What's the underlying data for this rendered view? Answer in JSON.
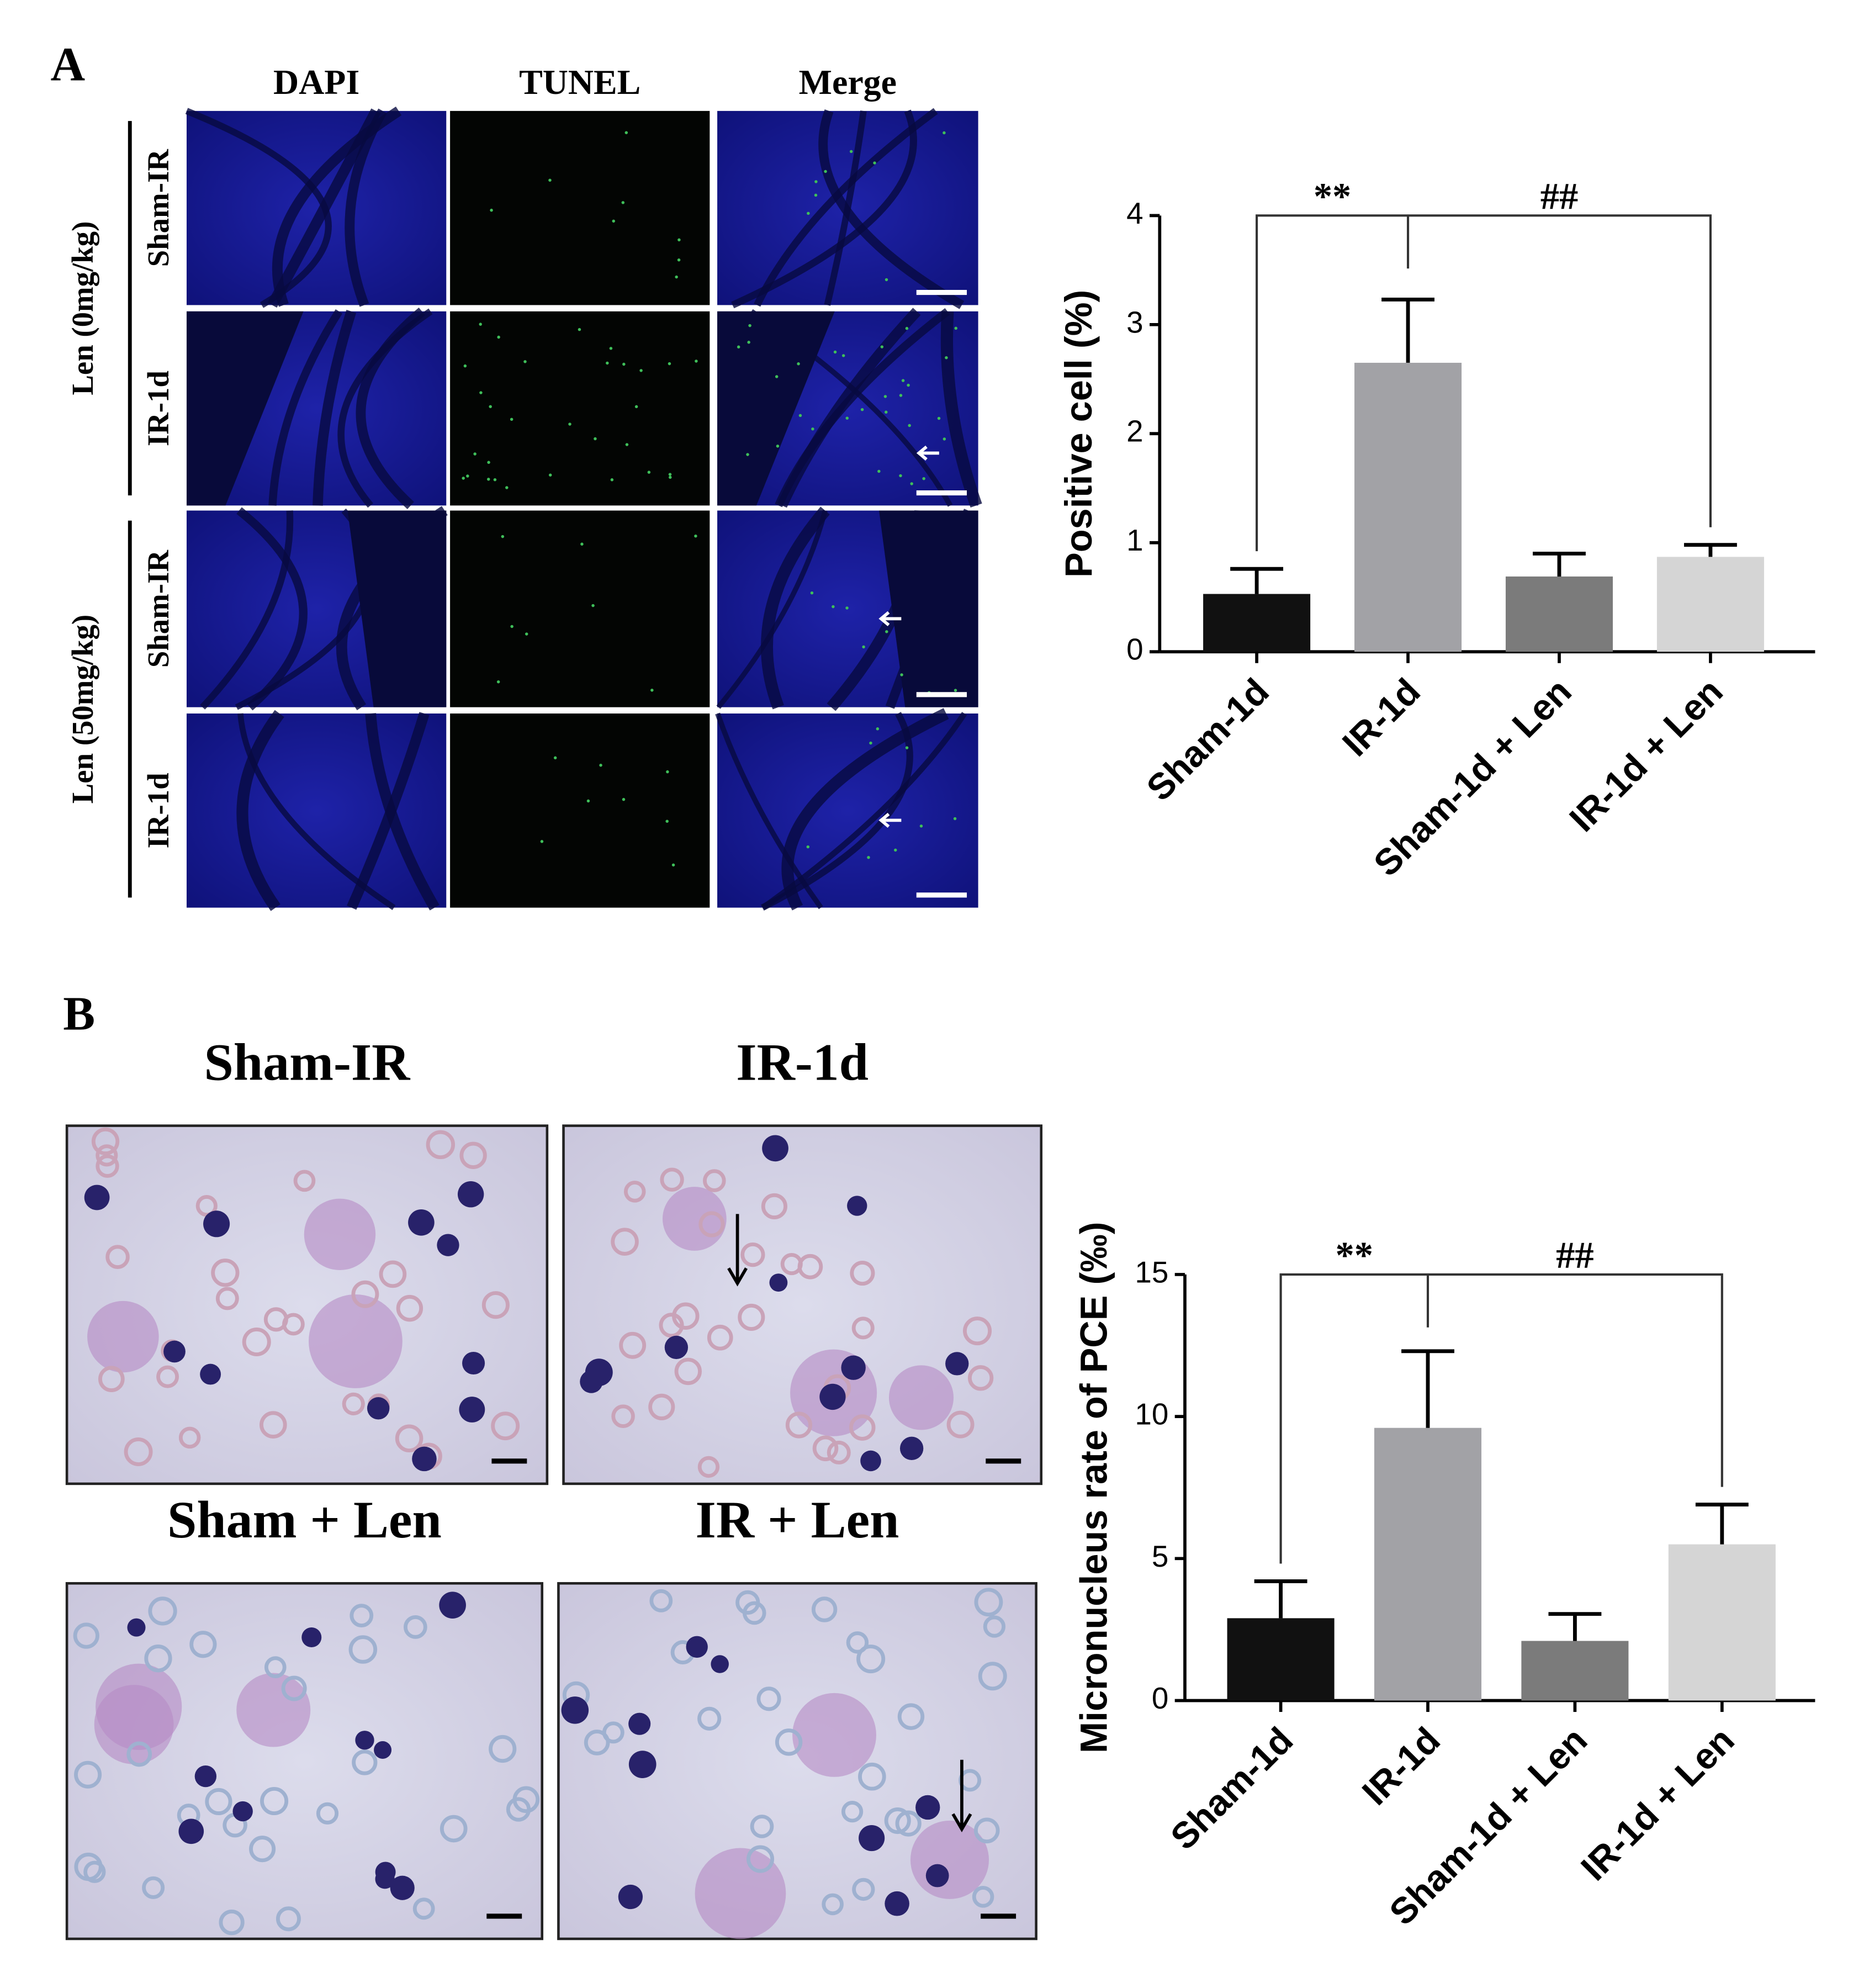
{
  "panel_a": {
    "label": "A",
    "columns": [
      "DAPI",
      "TUNEL",
      "Merge"
    ],
    "groups": [
      {
        "label": "Len (0mg/kg)",
        "rows": [
          "Sham-IR",
          "IR-1d"
        ]
      },
      {
        "label": "Len (50mg/kg)",
        "rows": [
          "Sham-IR",
          "IR-1d"
        ]
      }
    ]
  },
  "panel_b": {
    "label": "B",
    "images": [
      "Sham-IR",
      "IR-1d",
      "Sham + Len",
      "IR + Len"
    ]
  },
  "chart_data": [
    {
      "type": "bar",
      "y_label": "Positive cell (%)",
      "categories": [
        "Sham-1d",
        "IR-1d",
        "Sham-1d + Len",
        "IR-1d + Len"
      ],
      "values": [
        0.53,
        2.65,
        0.69,
        0.87
      ],
      "errors": [
        0.23,
        0.58,
        0.21,
        0.11
      ],
      "colors": [
        "#111111",
        "#a2a2a6",
        "#7b7b7b",
        "#d5d5d5"
      ],
      "ylim": [
        0,
        4
      ],
      "yticks": [
        0,
        1,
        2,
        3,
        4
      ],
      "annotations": [
        "**",
        "##"
      ]
    },
    {
      "type": "bar",
      "y_label": "Micronucleus rate of PCE (‰)",
      "categories": [
        "Sham-1d",
        "IR-1d",
        "Sham-1d + Len",
        "IR-1d + Len"
      ],
      "values": [
        2.9,
        9.6,
        2.1,
        5.5
      ],
      "errors": [
        1.3,
        2.7,
        0.95,
        1.4
      ],
      "colors": [
        "#111111",
        "#a2a2a6",
        "#7b7b7b",
        "#d5d5d5"
      ],
      "ylim": [
        0,
        15
      ],
      "yticks": [
        0,
        5,
        10,
        15
      ],
      "annotations": [
        "**",
        "##"
      ]
    }
  ]
}
